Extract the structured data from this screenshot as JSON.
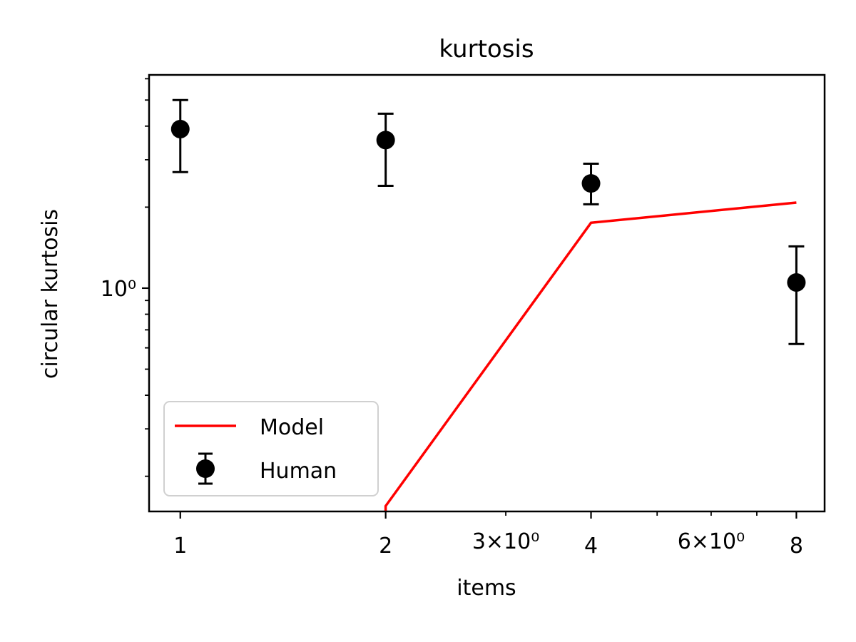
{
  "chart_data": {
    "type": "scatter",
    "title": "kurtosis",
    "xlabel": "items",
    "ylabel": "circular kurtosis",
    "xscale": "log",
    "yscale": "log",
    "xlim": [
      0.9,
      8.8
    ],
    "ylim": [
      0.148,
      6.2
    ],
    "x_major_ticks": [
      {
        "value": 1,
        "label": "1"
      },
      {
        "value": 2,
        "label": "2"
      },
      {
        "value": 4,
        "label": "4"
      },
      {
        "value": 8,
        "label": "8"
      }
    ],
    "x_minor_ticks": [
      {
        "value": 3,
        "label": "3×10⁰"
      },
      {
        "value": 5,
        "label": ""
      },
      {
        "value": 6,
        "label": "6×10⁰"
      },
      {
        "value": 7,
        "label": ""
      }
    ],
    "y_major_ticks": [
      {
        "value": 1,
        "label": "10⁰"
      }
    ],
    "y_minor_ticks": [
      0.2,
      0.3,
      0.4,
      0.5,
      0.6,
      0.7,
      0.8,
      0.9,
      2,
      3,
      4,
      5,
      6
    ],
    "grid": false,
    "legend": {
      "position": "lower-left"
    },
    "series": [
      {
        "name": "Model",
        "kind": "line",
        "color": "#ff0000",
        "x": [
          2,
          2,
          4,
          8
        ],
        "y": [
          0.148,
          0.155,
          1.75,
          2.08
        ]
      },
      {
        "name": "Human",
        "kind": "errorbar",
        "color": "#000000",
        "x": [
          1,
          2,
          4,
          8
        ],
        "y": [
          3.9,
          3.55,
          2.45,
          1.05
        ],
        "yerr_low": [
          2.7,
          2.4,
          2.05,
          0.62
        ],
        "yerr_high": [
          5.0,
          4.45,
          2.9,
          1.43
        ]
      }
    ]
  }
}
